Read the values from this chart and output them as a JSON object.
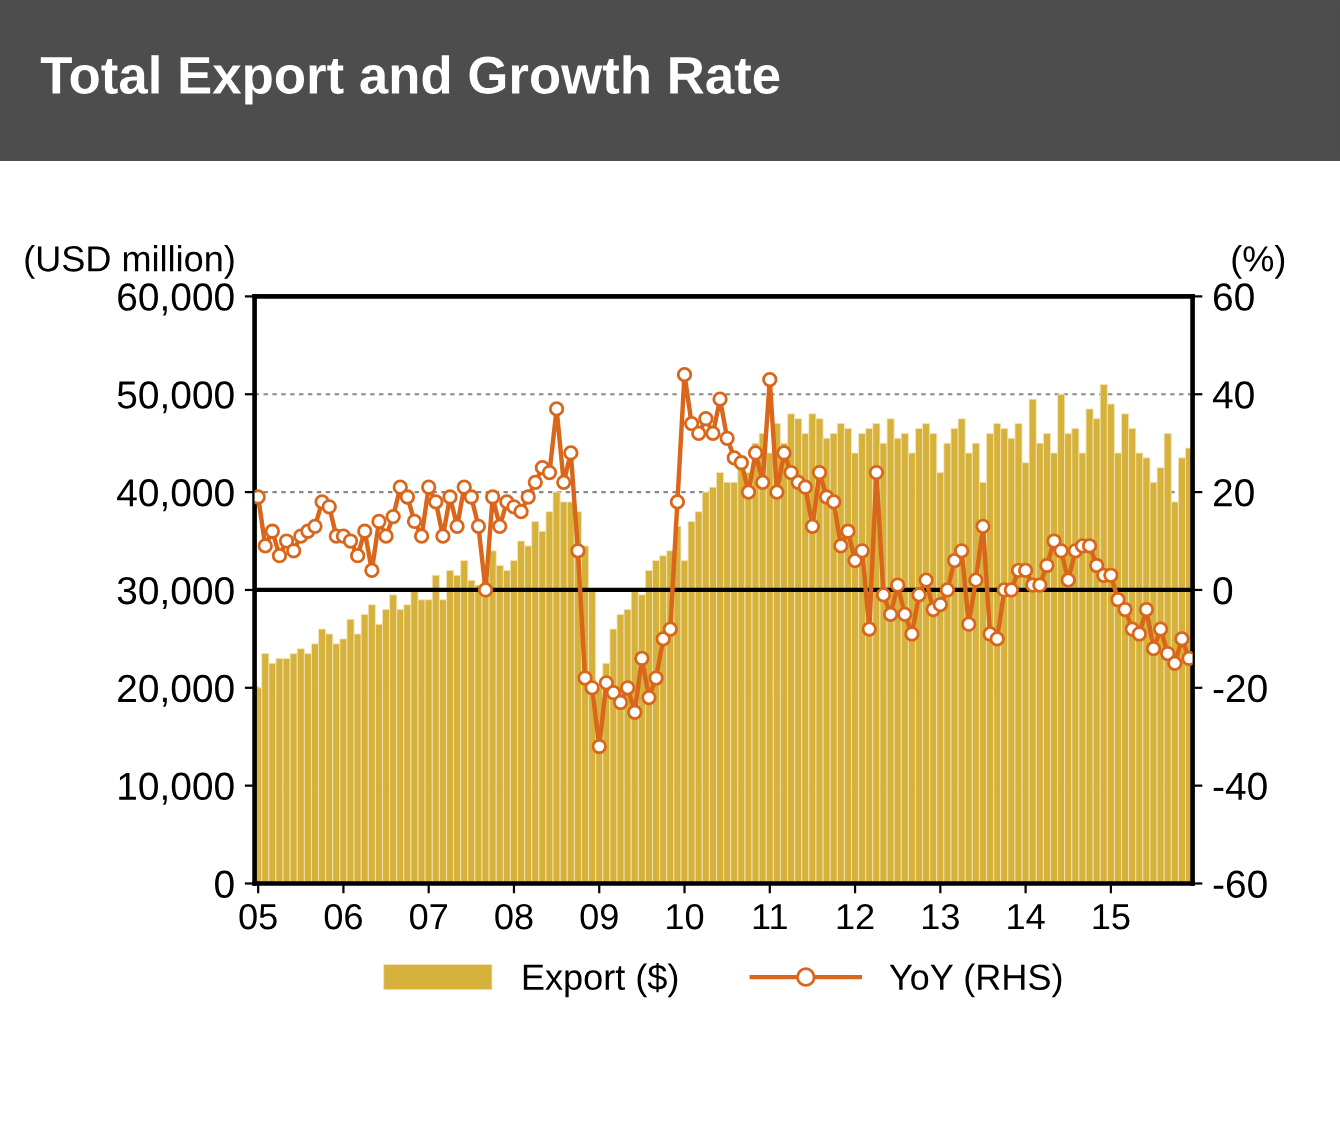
{
  "chart_data": {
    "type": "bar",
    "title": "Total Export and Growth Rate",
    "ylabel": "(USD million)",
    "y2label": "(%)",
    "categories": [
      "05",
      null,
      null,
      null,
      null,
      null,
      null,
      null,
      null,
      null,
      null,
      null,
      "06",
      null,
      null,
      null,
      null,
      null,
      null,
      null,
      null,
      null,
      null,
      null,
      "07",
      null,
      null,
      null,
      null,
      null,
      null,
      null,
      null,
      null,
      null,
      null,
      "08",
      null,
      null,
      null,
      null,
      null,
      null,
      null,
      null,
      null,
      null,
      null,
      "09",
      null,
      null,
      null,
      null,
      null,
      null,
      null,
      null,
      null,
      null,
      null,
      "10",
      null,
      null,
      null,
      null,
      null,
      null,
      null,
      null,
      null,
      null,
      null,
      "11",
      null,
      null,
      null,
      null,
      null,
      null,
      null,
      null,
      null,
      null,
      null,
      "12",
      null,
      null,
      null,
      null,
      null,
      null,
      null,
      null,
      null,
      null,
      null,
      "13",
      null,
      null,
      null,
      null,
      null,
      null,
      null,
      null,
      null,
      null,
      null,
      "14",
      null,
      null,
      null,
      null,
      null,
      null,
      null,
      null,
      null,
      null,
      null,
      "15",
      null,
      null,
      null,
      null,
      null,
      null,
      null,
      null,
      null,
      null,
      null
    ],
    "series": [
      {
        "name": "Export ($)",
        "color": "#d6b23c",
        "values": [
          20000,
          23500,
          22500,
          23000,
          23000,
          23500,
          24000,
          23500,
          24500,
          26000,
          25500,
          24500,
          25000,
          27000,
          25500,
          27500,
          28500,
          26500,
          28000,
          29500,
          28000,
          28500,
          30000,
          29000,
          29000,
          31500,
          29000,
          32000,
          31500,
          33000,
          31000,
          30500,
          31000,
          34000,
          32500,
          32000,
          33000,
          35000,
          34500,
          37000,
          36000,
          38000,
          40000,
          39000,
          39000,
          38000,
          34500,
          30000,
          20000,
          22500,
          26000,
          27500,
          28000,
          30000,
          29500,
          32000,
          33000,
          33500,
          34000,
          36500,
          33000,
          37000,
          38000,
          40000,
          40500,
          42000,
          41000,
          41000,
          43000,
          42000,
          45000,
          46000,
          44000,
          47000,
          45000,
          48000,
          47500,
          46000,
          48000,
          47500,
          45500,
          46000,
          47000,
          46500,
          44000,
          46000,
          46500,
          47000,
          45000,
          47500,
          45500,
          46000,
          44000,
          46500,
          47000,
          46000,
          42000,
          45000,
          46500,
          47500,
          44000,
          45000,
          41000,
          46000,
          47000,
          46500,
          45500,
          47000,
          43000,
          49500,
          45000,
          46000,
          44000,
          50000,
          46000,
          46500,
          44000,
          48500,
          47500,
          51000,
          49000,
          44000,
          48000,
          46500,
          44000,
          43500,
          41000,
          42500,
          46000,
          39000,
          43500,
          44500
        ]
      },
      {
        "name": "YoY (RHS)",
        "type": "line",
        "axis": "y2",
        "color": "#d9661a",
        "marker": "circle",
        "values": [
          19,
          9,
          12,
          7,
          10,
          8,
          11,
          12,
          13,
          18,
          17,
          11,
          11,
          10,
          7,
          12,
          4,
          14,
          11,
          15,
          21,
          19,
          14,
          11,
          21,
          18,
          11,
          19,
          13,
          21,
          19,
          13,
          0,
          19,
          13,
          18,
          17,
          16,
          19,
          22,
          25,
          24,
          37,
          22,
          28,
          8,
          -18,
          -20,
          -32,
          -19,
          -21,
          -23,
          -20,
          -25,
          -14,
          -22,
          -18,
          -10,
          -8,
          18,
          44,
          34,
          32,
          35,
          32,
          39,
          31,
          27,
          26,
          20,
          28,
          22,
          43,
          20,
          28,
          24,
          22,
          21,
          13,
          24,
          19,
          18,
          9,
          12,
          6,
          8,
          -8,
          24,
          -1,
          -5,
          1,
          -5,
          -9,
          -1,
          2,
          -4,
          -3,
          0,
          6,
          8,
          -7,
          2,
          13,
          -9,
          -10,
          0,
          0,
          4,
          4,
          1,
          1,
          5,
          10,
          8,
          2,
          8,
          9,
          9,
          5,
          3,
          3,
          -2,
          -4,
          -8,
          -9,
          -4,
          -12,
          -8,
          -13,
          -15,
          -10,
          -14
        ]
      }
    ],
    "ylim": [
      0,
      60000
    ],
    "yticks": [
      {
        "value": 0,
        "label": "0"
      },
      {
        "value": 10000,
        "label": "10,000"
      },
      {
        "value": 20000,
        "label": "20,000"
      },
      {
        "value": 30000,
        "label": "30,000"
      },
      {
        "value": 40000,
        "label": "40,000"
      },
      {
        "value": 50000,
        "label": "50,000"
      },
      {
        "value": 60000,
        "label": "60,000"
      }
    ],
    "y2lim": [
      -60,
      60
    ],
    "y2ticks": [
      -60,
      -40,
      -20,
      0,
      20,
      40,
      60
    ],
    "ref_lines": [
      {
        "axis": "y2",
        "value": 0,
        "label": null,
        "color": "#000000"
      }
    ],
    "grid": "y",
    "legend": "bottom"
  }
}
